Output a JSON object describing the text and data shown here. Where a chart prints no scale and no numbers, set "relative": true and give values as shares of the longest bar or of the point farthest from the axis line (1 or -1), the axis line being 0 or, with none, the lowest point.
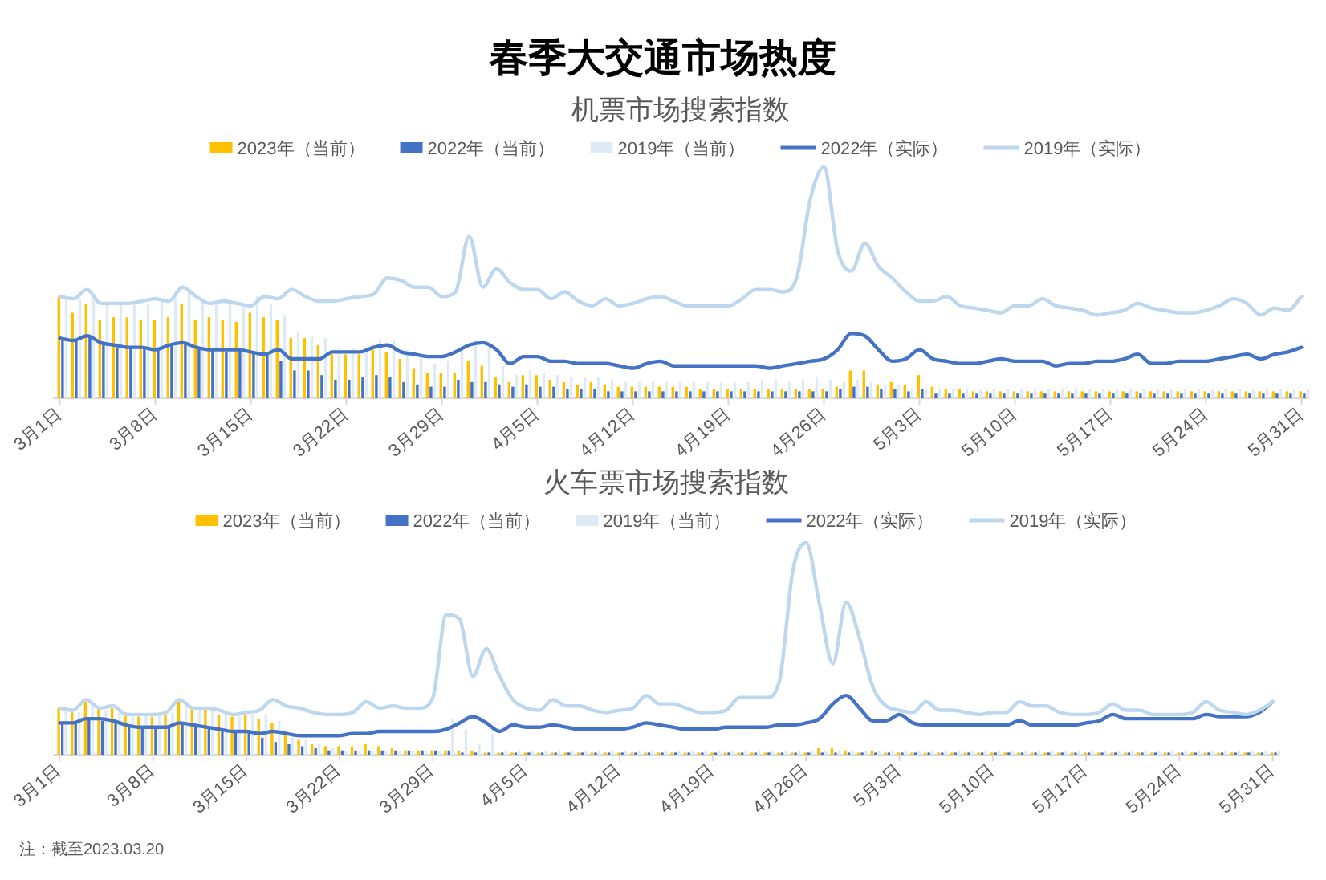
{
  "chart_data": [
    {
      "type": "bar",
      "title": "春季大交通市场热度",
      "subtitle": "机票市场搜索指数",
      "relative": true,
      "legend": "top",
      "categories": [
        "3月1日",
        null,
        null,
        null,
        null,
        null,
        null,
        "3月8日",
        null,
        null,
        null,
        null,
        null,
        null,
        "3月15日",
        null,
        null,
        null,
        null,
        null,
        null,
        "3月22日",
        null,
        null,
        null,
        null,
        null,
        null,
        "3月29日",
        null,
        null,
        null,
        null,
        null,
        null,
        "4月5日",
        null,
        null,
        null,
        null,
        null,
        null,
        "4月12日",
        null,
        null,
        null,
        null,
        null,
        null,
        "4月19日",
        null,
        null,
        null,
        null,
        null,
        null,
        "4月26日",
        null,
        null,
        null,
        null,
        null,
        null,
        "5月3日",
        null,
        null,
        null,
        null,
        null,
        null,
        "5月10日",
        null,
        null,
        null,
        null,
        null,
        null,
        "5月17日",
        null,
        null,
        null,
        null,
        null,
        null,
        "5月24日",
        null,
        null,
        null,
        null,
        null,
        null,
        "5月31日"
      ],
      "series": [
        {
          "name": "2023年（当前）",
          "color": "#ffc000",
          "values": [
            0.44,
            0.37,
            0.41,
            0.34,
            0.35,
            0.35,
            0.34,
            0.34,
            0.35,
            0.41,
            0.34,
            0.35,
            0.34,
            0.33,
            0.37,
            0.35,
            0.34,
            0.26,
            0.26,
            0.23,
            0.19,
            0.19,
            0.19,
            0.21,
            0.2,
            0.17,
            0.13,
            0.11,
            0.11,
            0.11,
            0.16,
            0.14,
            0.09,
            0.07,
            0.1,
            0.1,
            0.08,
            0.07,
            0.06,
            0.07,
            0.06,
            0.05,
            0.05,
            0.05,
            0.05,
            0.05,
            0.05,
            0.04,
            0.04,
            0.04,
            0.04,
            0.04,
            0.04,
            0.04,
            0.04,
            0.04,
            0.04,
            0.05,
            0.12,
            0.12,
            0.06,
            0.07,
            0.06,
            0.1,
            0.05,
            0.04,
            0.04,
            0.03,
            0.03,
            0.03,
            0.03,
            0.03,
            0.03,
            0.03,
            0.03,
            0.03,
            0.03,
            0.03,
            0.03,
            0.03,
            0.03,
            0.03,
            0.03,
            0.03,
            0.03,
            0.03,
            0.03,
            0.03,
            0.03,
            0.03,
            0.03,
            0.03
          ]
        },
        {
          "name": "2022年（当前）",
          "color": "#4472c4",
          "values": [
            0.26,
            0.25,
            0.27,
            0.24,
            0.22,
            0.22,
            0.22,
            0.22,
            0.23,
            0.24,
            0.22,
            0.21,
            0.2,
            0.21,
            0.2,
            0.19,
            0.16,
            0.12,
            0.12,
            0.1,
            0.08,
            0.08,
            0.09,
            0.1,
            0.09,
            0.07,
            0.06,
            0.05,
            0.05,
            0.08,
            0.07,
            0.07,
            0.06,
            0.05,
            0.06,
            0.05,
            0.05,
            0.04,
            0.04,
            0.04,
            0.03,
            0.03,
            0.03,
            0.03,
            0.03,
            0.03,
            0.03,
            0.03,
            0.03,
            0.03,
            0.03,
            0.03,
            0.03,
            0.03,
            0.03,
            0.03,
            0.03,
            0.04,
            0.05,
            0.05,
            0.04,
            0.04,
            0.03,
            0.04,
            0.02,
            0.02,
            0.02,
            0.02,
            0.02,
            0.02,
            0.02,
            0.02,
            0.02,
            0.02,
            0.02,
            0.02,
            0.02,
            0.02,
            0.02,
            0.02,
            0.02,
            0.02,
            0.02,
            0.02,
            0.02,
            0.02,
            0.02,
            0.02,
            0.02,
            0.02,
            0.02,
            0.02
          ]
        },
        {
          "name": "2019年（当前）",
          "color": "#deebf7",
          "values": [
            0.44,
            0.43,
            0.45,
            0.41,
            0.41,
            0.41,
            0.41,
            0.42,
            0.43,
            0.47,
            0.43,
            0.41,
            0.41,
            0.41,
            0.44,
            0.41,
            0.36,
            0.29,
            0.27,
            0.26,
            0.22,
            0.22,
            0.22,
            0.25,
            0.25,
            0.21,
            0.18,
            0.15,
            0.16,
            0.22,
            0.25,
            0.24,
            0.14,
            0.1,
            0.12,
            0.11,
            0.1,
            0.09,
            0.09,
            0.09,
            0.08,
            0.07,
            0.07,
            0.07,
            0.07,
            0.07,
            0.07,
            0.07,
            0.07,
            0.07,
            0.07,
            0.08,
            0.08,
            0.07,
            0.08,
            0.09,
            0.08,
            0.07,
            0.08,
            0.07,
            0.06,
            0.06,
            0.04,
            0.04,
            0.04,
            0.04,
            0.04,
            0.04,
            0.04,
            0.04,
            0.04,
            0.04,
            0.04,
            0.04,
            0.04,
            0.04,
            0.04,
            0.04,
            0.04,
            0.04,
            0.04,
            0.04,
            0.04,
            0.04,
            0.04,
            0.04,
            0.04,
            0.04,
            0.04,
            0.04,
            0.04,
            0.04
          ]
        },
        {
          "name": "2022年（实际）",
          "type": "line",
          "color": "#4472c4",
          "values": [
            0.26,
            0.25,
            0.27,
            0.24,
            0.23,
            0.22,
            0.22,
            0.21,
            0.23,
            0.24,
            0.22,
            0.21,
            0.21,
            0.21,
            0.2,
            0.19,
            0.21,
            0.17,
            0.17,
            0.17,
            0.2,
            0.2,
            0.2,
            0.22,
            0.23,
            0.2,
            0.19,
            0.18,
            0.18,
            0.2,
            0.23,
            0.24,
            0.21,
            0.15,
            0.18,
            0.18,
            0.16,
            0.16,
            0.15,
            0.15,
            0.15,
            0.14,
            0.13,
            0.15,
            0.16,
            0.14,
            0.14,
            0.14,
            0.14,
            0.14,
            0.14,
            0.14,
            0.13,
            0.14,
            0.15,
            0.16,
            0.17,
            0.21,
            0.28,
            0.27,
            0.21,
            0.16,
            0.17,
            0.21,
            0.17,
            0.16,
            0.15,
            0.15,
            0.16,
            0.17,
            0.16,
            0.16,
            0.16,
            0.14,
            0.15,
            0.15,
            0.16,
            0.16,
            0.17,
            0.19,
            0.15,
            0.15,
            0.16,
            0.16,
            0.16,
            0.17,
            0.18,
            0.19,
            0.17,
            0.19,
            0.2,
            0.22
          ]
        },
        {
          "name": "2019年（实际）",
          "type": "line",
          "color": "#bdd7ee",
          "values": [
            0.44,
            0.43,
            0.47,
            0.41,
            0.41,
            0.41,
            0.42,
            0.43,
            0.42,
            0.48,
            0.44,
            0.41,
            0.42,
            0.41,
            0.4,
            0.44,
            0.43,
            0.47,
            0.44,
            0.42,
            0.42,
            0.43,
            0.44,
            0.45,
            0.52,
            0.51,
            0.48,
            0.48,
            0.44,
            0.46,
            0.7,
            0.48,
            0.56,
            0.5,
            0.47,
            0.47,
            0.43,
            0.46,
            0.42,
            0.4,
            0.43,
            0.4,
            0.41,
            0.43,
            0.44,
            0.42,
            0.4,
            0.4,
            0.4,
            0.4,
            0.43,
            0.47,
            0.47,
            0.46,
            0.52,
            0.86,
            1,
            0.64,
            0.55,
            0.67,
            0.57,
            0.52,
            0.46,
            0.42,
            0.42,
            0.44,
            0.4,
            0.39,
            0.38,
            0.37,
            0.4,
            0.4,
            0.43,
            0.4,
            0.39,
            0.38,
            0.36,
            0.37,
            0.38,
            0.41,
            0.39,
            0.38,
            0.37,
            0.37,
            0.38,
            0.4,
            0.43,
            0.41,
            0.36,
            0.39,
            0.38,
            0.44
          ]
        }
      ]
    },
    {
      "type": "bar",
      "title": "火车票市场搜索指数",
      "relative": true,
      "legend": "top",
      "annotations": [
        "注：截至2023.03.20"
      ],
      "categories": [
        "3月1日",
        null,
        null,
        null,
        null,
        null,
        null,
        "3月8日",
        null,
        null,
        null,
        null,
        null,
        null,
        "3月15日",
        null,
        null,
        null,
        null,
        null,
        null,
        "3月22日",
        null,
        null,
        null,
        null,
        null,
        null,
        "3月29日",
        null,
        null,
        null,
        null,
        null,
        null,
        "4月5日",
        null,
        null,
        null,
        null,
        null,
        null,
        "4月12日",
        null,
        null,
        null,
        null,
        null,
        null,
        "4月19日",
        null,
        null,
        null,
        null,
        null,
        null,
        "4月26日",
        null,
        null,
        null,
        null,
        null,
        null,
        "5月3日",
        null,
        null,
        null,
        null,
        null,
        null,
        "5月10日",
        null,
        null,
        null,
        null,
        null,
        null,
        "5月17日",
        null,
        null,
        null,
        null,
        null,
        null,
        "5月24日",
        null,
        null,
        null,
        null,
        null,
        null,
        "5月31日"
      ],
      "series": [
        {
          "name": "2023年（当前）",
          "color": "#ffc000",
          "values": [
            0.22,
            0.2,
            0.25,
            0.22,
            0.22,
            0.2,
            0.18,
            0.18,
            0.19,
            0.26,
            0.22,
            0.22,
            0.19,
            0.18,
            0.19,
            0.17,
            0.15,
            0.1,
            0.07,
            0.05,
            0.04,
            0.04,
            0.04,
            0.05,
            0.04,
            0.03,
            0.02,
            0.02,
            0.02,
            0.02,
            0.02,
            0.02,
            0.01,
            0.01,
            0.01,
            0.01,
            0.01,
            0.01,
            0.01,
            0.01,
            0.01,
            0.01,
            0.01,
            0.01,
            0.01,
            0.01,
            0.01,
            0.01,
            0.01,
            0.01,
            0.01,
            0.01,
            0.01,
            0.01,
            0.01,
            0.01,
            0.01,
            0.03,
            0.03,
            0.02,
            0.01,
            0.02,
            0.01,
            0.01,
            0.01,
            0.01,
            0.01,
            0.01,
            0.01,
            0.01,
            0.01,
            0.01,
            0.01,
            0.01,
            0.01,
            0.01,
            0.01,
            0.01,
            0.01,
            0.01,
            0.01,
            0.01,
            0.01,
            0.01,
            0.01,
            0.01,
            0.01,
            0.01,
            0.01,
            0.01,
            0.01,
            0.01
          ]
        },
        {
          "name": "2022年（当前）",
          "color": "#4472c4",
          "values": [
            0.15,
            0.15,
            0.17,
            0.16,
            0.15,
            0.14,
            0.13,
            0.13,
            0.13,
            0.15,
            0.14,
            0.13,
            0.12,
            0.11,
            0.11,
            0.08,
            0.06,
            0.05,
            0.04,
            0.03,
            0.02,
            0.02,
            0.02,
            0.02,
            0.02,
            0.02,
            0.02,
            0.02,
            0.02,
            0.02,
            0.01,
            0.01,
            0.01,
            0.01,
            0.01,
            0.01,
            0.01,
            0.01,
            0.01,
            0.01,
            0.01,
            0.01,
            0.01,
            0.01,
            0.01,
            0.01,
            0.01,
            0.01,
            0.01,
            0.01,
            0.01,
            0.01,
            0.01,
            0.01,
            0.01,
            0.01,
            0.01,
            0.01,
            0.01,
            0.01,
            0.01,
            0.01,
            0.01,
            0.01,
            0.01,
            0.01,
            0.01,
            0.01,
            0.01,
            0.01,
            0.01,
            0.01,
            0.01,
            0.01,
            0.01,
            0.01,
            0.01,
            0.01,
            0.01,
            0.01,
            0.01,
            0.01,
            0.01,
            0.01,
            0.01,
            0.01,
            0.01,
            0.01,
            0.01,
            0.01,
            0.01,
            0.01
          ]
        },
        {
          "name": "2019年（当前）",
          "color": "#deebf7",
          "values": [
            0.22,
            0.2,
            0.24,
            0.21,
            0.2,
            0.19,
            0.19,
            0.19,
            0.2,
            0.25,
            0.22,
            0.22,
            0.2,
            0.19,
            0.19,
            0.19,
            0.16,
            0.1,
            0.07,
            0.05,
            0.03,
            0.02,
            0.02,
            0.02,
            0.02,
            0.02,
            0.02,
            0.02,
            0.02,
            0.17,
            0.12,
            0.05,
            0.1,
            0.02,
            0.02,
            0.02,
            0.02,
            0.02,
            0.02,
            0.02,
            0.02,
            0.02,
            0.02,
            0.02,
            0.02,
            0.02,
            0.02,
            0.02,
            0.02,
            0.02,
            0.02,
            0.02,
            0.02,
            0.02,
            0.02,
            0.02,
            0.02,
            0.02,
            0.02,
            0.02,
            0.02,
            0.02,
            0.02,
            0.02,
            0.02,
            0.02,
            0.02,
            0.02,
            0.02,
            0.02,
            0.02,
            0.02,
            0.02,
            0.02,
            0.02,
            0.02,
            0.02,
            0.02,
            0.02,
            0.02,
            0.02,
            0.02,
            0.02,
            0.02,
            0.02,
            0.02,
            0.02,
            0.02,
            0.02,
            0.02,
            0.02,
            0.02
          ]
        },
        {
          "name": "2022年（实际）",
          "type": "line",
          "color": "#4472c4",
          "values": [
            0.15,
            0.15,
            0.17,
            0.17,
            0.16,
            0.14,
            0.13,
            0.13,
            0.13,
            0.15,
            0.14,
            0.13,
            0.12,
            0.11,
            0.11,
            0.1,
            0.11,
            0.1,
            0.09,
            0.09,
            0.09,
            0.09,
            0.1,
            0.1,
            0.11,
            0.11,
            0.11,
            0.11,
            0.11,
            0.12,
            0.15,
            0.18,
            0.15,
            0.11,
            0.14,
            0.13,
            0.13,
            0.14,
            0.13,
            0.12,
            0.12,
            0.12,
            0.12,
            0.13,
            0.15,
            0.14,
            0.13,
            0.12,
            0.12,
            0.12,
            0.13,
            0.13,
            0.13,
            0.13,
            0.14,
            0.14,
            0.15,
            0.17,
            0.24,
            0.28,
            0.22,
            0.16,
            0.16,
            0.19,
            0.15,
            0.14,
            0.14,
            0.14,
            0.14,
            0.14,
            0.14,
            0.14,
            0.16,
            0.14,
            0.14,
            0.14,
            0.14,
            0.15,
            0.16,
            0.19,
            0.17,
            0.17,
            0.17,
            0.17,
            0.17,
            0.17,
            0.19,
            0.18,
            0.18,
            0.18,
            0.2,
            0.25
          ]
        },
        {
          "name": "2019年（实际）",
          "type": "line",
          "color": "#bdd7ee",
          "values": [
            0.22,
            0.21,
            0.26,
            0.22,
            0.23,
            0.19,
            0.19,
            0.19,
            0.2,
            0.26,
            0.22,
            0.22,
            0.21,
            0.19,
            0.2,
            0.21,
            0.26,
            0.23,
            0.22,
            0.2,
            0.19,
            0.19,
            0.2,
            0.25,
            0.22,
            0.23,
            0.22,
            0.22,
            0.27,
            0.66,
            0.64,
            0.37,
            0.5,
            0.37,
            0.26,
            0.22,
            0.21,
            0.26,
            0.23,
            0.23,
            0.21,
            0.2,
            0.21,
            0.22,
            0.28,
            0.24,
            0.24,
            0.22,
            0.2,
            0.2,
            0.21,
            0.27,
            0.27,
            0.27,
            0.35,
            0.87,
            1,
            0.71,
            0.43,
            0.72,
            0.55,
            0.32,
            0.23,
            0.21,
            0.2,
            0.25,
            0.21,
            0.21,
            0.2,
            0.19,
            0.2,
            0.2,
            0.25,
            0.23,
            0.23,
            0.2,
            0.19,
            0.19,
            0.2,
            0.24,
            0.21,
            0.21,
            0.19,
            0.19,
            0.19,
            0.2,
            0.25,
            0.21,
            0.2,
            0.19,
            0.21,
            0.25
          ]
        }
      ]
    }
  ]
}
